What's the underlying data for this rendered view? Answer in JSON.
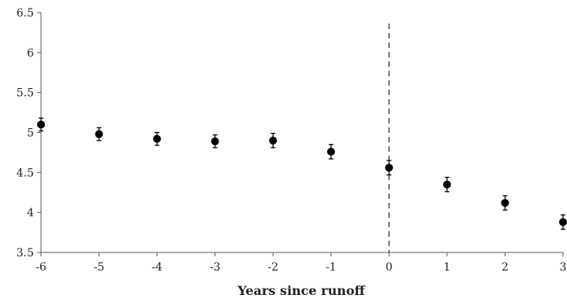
{
  "chart_data": {
    "type": "scatter",
    "title": "",
    "xlabel": "Years since runoff",
    "ylabel": "",
    "xlim": [
      -6,
      3
    ],
    "ylim": [
      3.5,
      6.5
    ],
    "x_ticks": [
      "-6",
      "-5",
      "-4",
      "-3",
      "-2",
      "-1",
      "0",
      "1",
      "2",
      "3"
    ],
    "y_ticks": [
      "3.5",
      "4",
      "4.5",
      "5",
      "5.5",
      "6",
      "6.5"
    ],
    "grid": false,
    "legend": "none",
    "vertical_reference_line": 0,
    "marker_color": "#000000",
    "series": [
      {
        "x": [
          -6,
          -5,
          -4,
          -3,
          -2,
          -1,
          0,
          1,
          2,
          3
        ],
        "y": [
          5.1,
          4.98,
          4.92,
          4.89,
          4.9,
          4.76,
          4.56,
          4.35,
          4.12,
          3.88
        ],
        "error": [
          0.08,
          0.08,
          0.08,
          0.08,
          0.09,
          0.09,
          0.09,
          0.09,
          0.09,
          0.09
        ]
      }
    ]
  }
}
